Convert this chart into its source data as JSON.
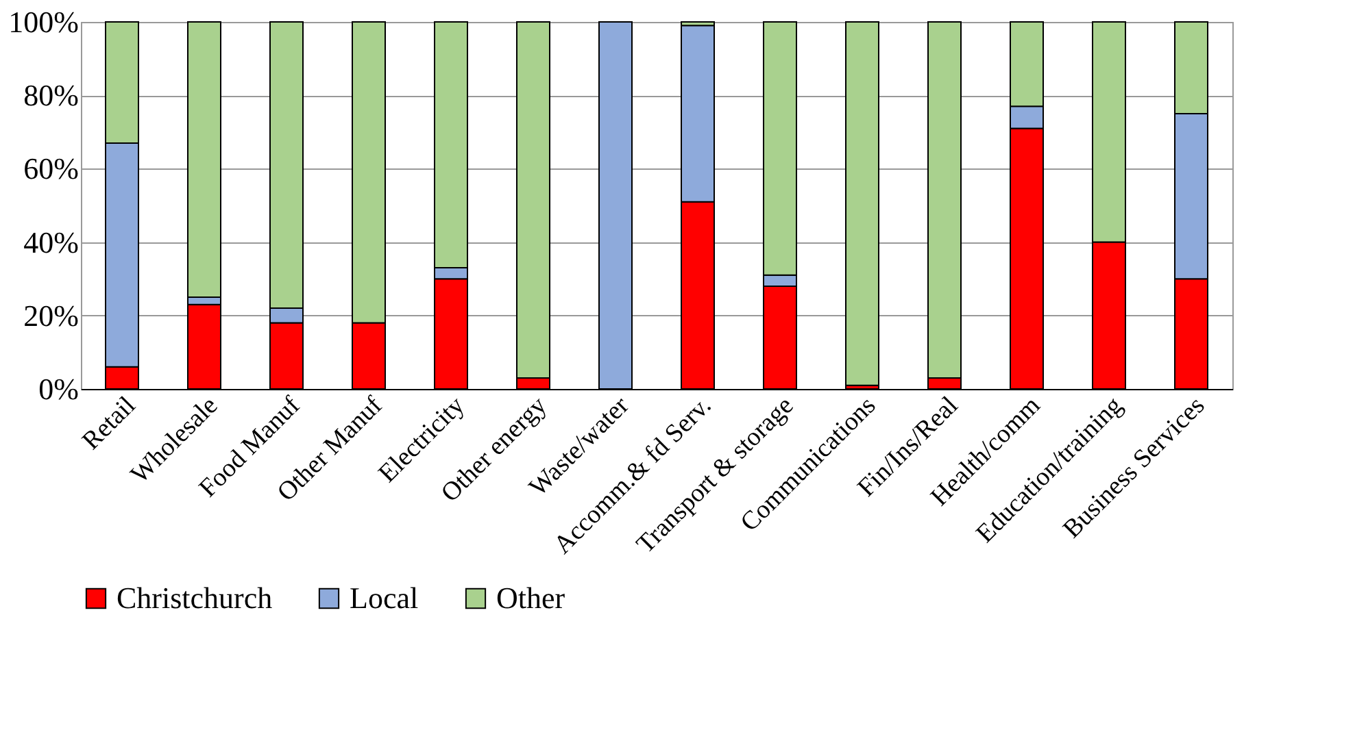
{
  "chart_data": {
    "type": "bar",
    "stacked": true,
    "categories": [
      "Retail",
      "Wholesale",
      "Food Manuf",
      "Other Manuf",
      "Electricity",
      "Other energy",
      "Waste/water",
      "Accomm.& fd Serv.",
      "Transport & storage",
      "Communications",
      "Fin/Ins/Real",
      "Health/comm",
      "Education/training",
      "Business Services"
    ],
    "series": [
      {
        "name": "Christchurch",
        "color": "#ff0000",
        "values": [
          6,
          23,
          18,
          18,
          30,
          3,
          0,
          51,
          28,
          1,
          3,
          71,
          40,
          30
        ]
      },
      {
        "name": "Local",
        "color": "#8eaadb",
        "values": [
          61,
          2,
          4,
          0,
          3,
          0,
          100,
          48,
          3,
          0,
          0,
          6,
          0,
          45
        ]
      },
      {
        "name": "Other",
        "color": "#a9d18e",
        "values": [
          33,
          75,
          78,
          82,
          67,
          97,
          0,
          1,
          69,
          99,
          97,
          23,
          60,
          25
        ]
      }
    ],
    "ylim": [
      0,
      100
    ],
    "yticks": [
      {
        "value": 0,
        "label": "0%"
      },
      {
        "value": 20,
        "label": "20%"
      },
      {
        "value": 40,
        "label": "40%"
      },
      {
        "value": 60,
        "label": "60%"
      },
      {
        "value": 80,
        "label": "80%"
      },
      {
        "value": 100,
        "label": "100%"
      }
    ],
    "grid": "y",
    "legend": "bottom"
  }
}
